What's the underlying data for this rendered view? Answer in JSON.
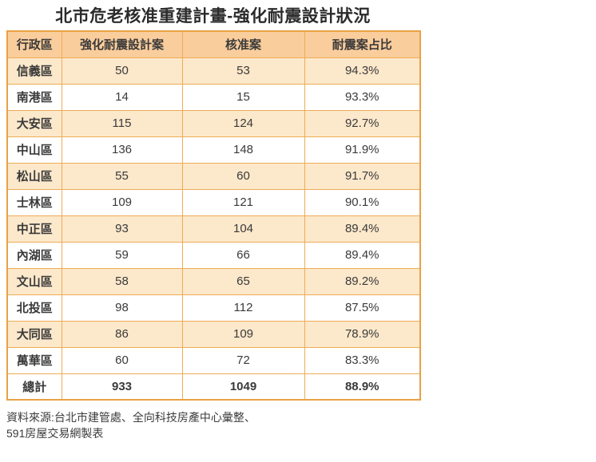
{
  "colors": {
    "title_color": "#2b2b2b",
    "text_color": "#3a3a3a",
    "header_bg": "#facd9c",
    "row_alt_bg": "#fce8cb",
    "row_bg": "#ffffff",
    "border": "#eeac55",
    "outer_border": "#e9a144",
    "header_rule": "#e09a35"
  },
  "chart_data": {
    "type": "table",
    "title": "北市危老核准重建計畫-強化耐震設計狀況",
    "columns": [
      "行政區",
      "強化耐震設計案",
      "核准案",
      "耐震案占比"
    ],
    "rows": [
      [
        "信義區",
        50,
        53,
        "94.3%"
      ],
      [
        "南港區",
        14,
        15,
        "93.3%"
      ],
      [
        "大安區",
        115,
        124,
        "92.7%"
      ],
      [
        "中山區",
        136,
        148,
        "91.9%"
      ],
      [
        "松山區",
        55,
        60,
        "91.7%"
      ],
      [
        "士林區",
        109,
        121,
        "90.1%"
      ],
      [
        "中正區",
        93,
        104,
        "89.4%"
      ],
      [
        "內湖區",
        59,
        66,
        "89.4%"
      ],
      [
        "文山區",
        58,
        65,
        "89.2%"
      ],
      [
        "北投區",
        98,
        112,
        "87.5%"
      ],
      [
        "大同區",
        86,
        109,
        "78.9%"
      ],
      [
        "萬華區",
        60,
        72,
        "83.3%"
      ]
    ],
    "total_row": [
      "總計",
      933,
      1049,
      "88.9%"
    ],
    "layout_hints": {
      "striped": true,
      "first_stripe": "peach",
      "grid": true
    }
  },
  "source": {
    "line1": "資料來源:台北市建管處、全向科技房產中心彙整、",
    "line2": "591房屋交易網製表"
  }
}
